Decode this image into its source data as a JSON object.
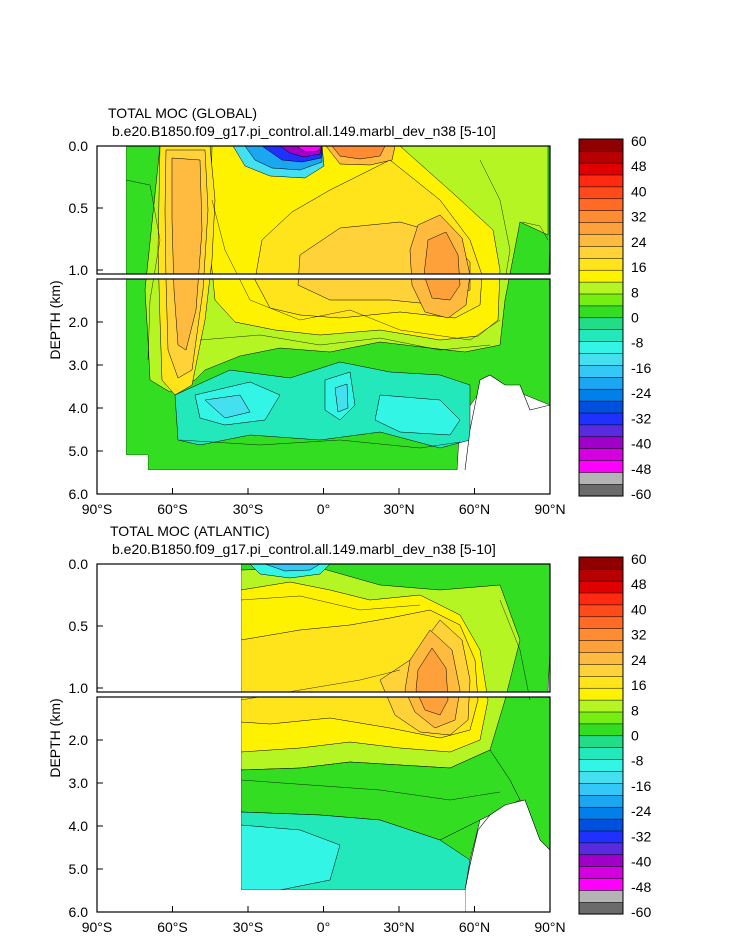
{
  "chart_data": [
    {
      "type": "heatmap",
      "title": "TOTAL MOC (GLOBAL)",
      "subtitle": "b.e20.B1850.f09_g17.pi_control.all.149.marbl_dev_n38 [5-10]",
      "ylabel": "DEPTH (km)",
      "xlim": [
        -90,
        90
      ],
      "ylim": [
        6.0,
        0.0
      ],
      "x_ticks": [
        "90°S",
        "60°S",
        "30°S",
        "0°",
        "30°N",
        "60°N",
        "90°N"
      ],
      "y_ticks_upper": [
        "0.0",
        "0.5",
        "1.0"
      ],
      "y_ticks_lower": [
        "2.0",
        "3.0",
        "4.0",
        "5.0",
        "6.0"
      ],
      "colorbar_labels": [
        "60",
        "48",
        "40",
        "32",
        "24",
        "16",
        "8",
        "0",
        "-8",
        "-16",
        "-24",
        "-32",
        "-40",
        "-48",
        "-60"
      ],
      "features": [
        {
          "lat": -50,
          "depth": 2.0,
          "value": 24
        },
        {
          "lat": -12,
          "depth": 0.1,
          "value": -60
        },
        {
          "lat": 12,
          "depth": 0.1,
          "value": 32
        },
        {
          "lat": 42,
          "depth": 1.0,
          "value": 28
        },
        {
          "lat": 0,
          "depth": 4.0,
          "value": -8
        }
      ]
    },
    {
      "type": "heatmap",
      "title": "TOTAL MOC (ATLANTIC)",
      "subtitle": "b.e20.B1850.f09_g17.pi_control.all.149.marbl_dev_n38 [5-10]",
      "ylabel": "DEPTH (km)",
      "xlim": [
        -90,
        90
      ],
      "ylim": [
        6.0,
        0.0
      ],
      "x_ticks": [
        "90°S",
        "60°S",
        "30°S",
        "0°",
        "30°N",
        "60°N",
        "90°N"
      ],
      "y_ticks_upper": [
        "0.0",
        "0.5",
        "1.0"
      ],
      "y_ticks_lower": [
        "2.0",
        "3.0",
        "4.0",
        "5.0",
        "6.0"
      ],
      "colorbar_labels": [
        "60",
        "48",
        "40",
        "32",
        "24",
        "16",
        "8",
        "0",
        "-8",
        "-16",
        "-24",
        "-32",
        "-40",
        "-48",
        "-60"
      ],
      "features": [
        {
          "lat": 42,
          "depth": 1.0,
          "value": 28
        },
        {
          "lat": 10,
          "depth": 1.2,
          "value": 16
        },
        {
          "lat": 0,
          "depth": 4.5,
          "value": -8
        }
      ]
    }
  ],
  "colors": {
    "palette": [
      "#6b6b6b",
      "#b4b4b4",
      "#ff00ff",
      "#d400e0",
      "#a000c8",
      "#5a2adf",
      "#2030ff",
      "#0050e0",
      "#0080e8",
      "#1aa6f0",
      "#33c8f5",
      "#44e0f0",
      "#33f5e6",
      "#22e8bb",
      "#22dd88",
      "#33dd22",
      "#77ee11",
      "#b5f523",
      "#fff200",
      "#ffe41c",
      "#ffd23a",
      "#ffbb3f",
      "#ffa13a",
      "#ff8c33",
      "#ff6a26",
      "#ff4a1a",
      "#ff2a10",
      "#e00000",
      "#b80000",
      "#900000"
    ],
    "ocean_mid": "#ffe41c",
    "frame": "#000000"
  }
}
